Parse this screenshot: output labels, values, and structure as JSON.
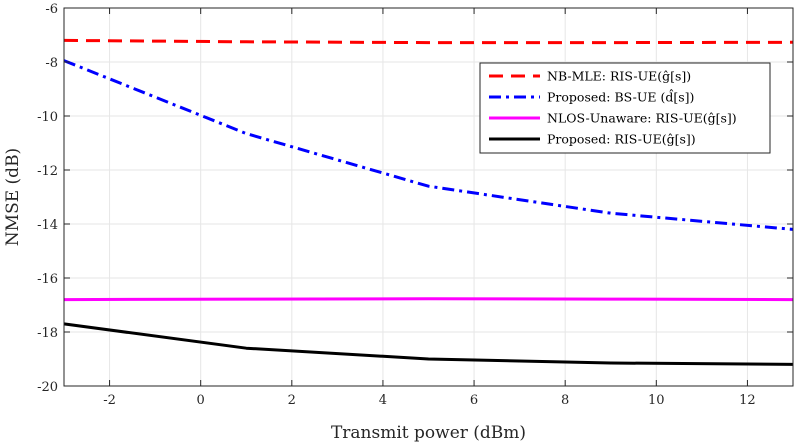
{
  "chart_data": {
    "type": "line",
    "xlabel": "Transmit power (dBm)",
    "ylabel": "NMSE (dB)",
    "xlim": [
      -3,
      13
    ],
    "ylim": [
      -20,
      -6
    ],
    "xticks": [
      -2,
      0,
      2,
      4,
      6,
      8,
      10,
      12
    ],
    "yticks": [
      -20,
      -18,
      -16,
      -14,
      -12,
      -10,
      -8,
      -6
    ],
    "grid": true,
    "legend_position": "top-right",
    "series": [
      {
        "name": "NB-MLE: RIS-UE(ĝ[s])",
        "color": "#ff0000",
        "style": "dashed",
        "x": [
          -3,
          1,
          5,
          9,
          13
        ],
        "y": [
          -7.2,
          -7.25,
          -7.28,
          -7.28,
          -7.27
        ]
      },
      {
        "name": "Proposed: BS-UE (d̂[s])",
        "color": "#0000ff",
        "style": "dashdot",
        "x": [
          -3,
          1,
          5,
          9,
          13
        ],
        "y": [
          -7.95,
          -10.65,
          -12.6,
          -13.6,
          -14.2
        ]
      },
      {
        "name": "NLOS-Unaware: RIS-UE(ĝ[s])",
        "color": "#ff00ff",
        "style": "solid",
        "x": [
          -3,
          1,
          5,
          9,
          13
        ],
        "y": [
          -16.8,
          -16.78,
          -16.77,
          -16.78,
          -16.8
        ]
      },
      {
        "name": "Proposed: RIS-UE(ĝ[s])",
        "color": "#000000",
        "style": "solid",
        "x": [
          -3,
          1,
          5,
          9,
          13
        ],
        "y": [
          -17.7,
          -18.6,
          -19.0,
          -19.15,
          -19.2
        ]
      }
    ]
  }
}
